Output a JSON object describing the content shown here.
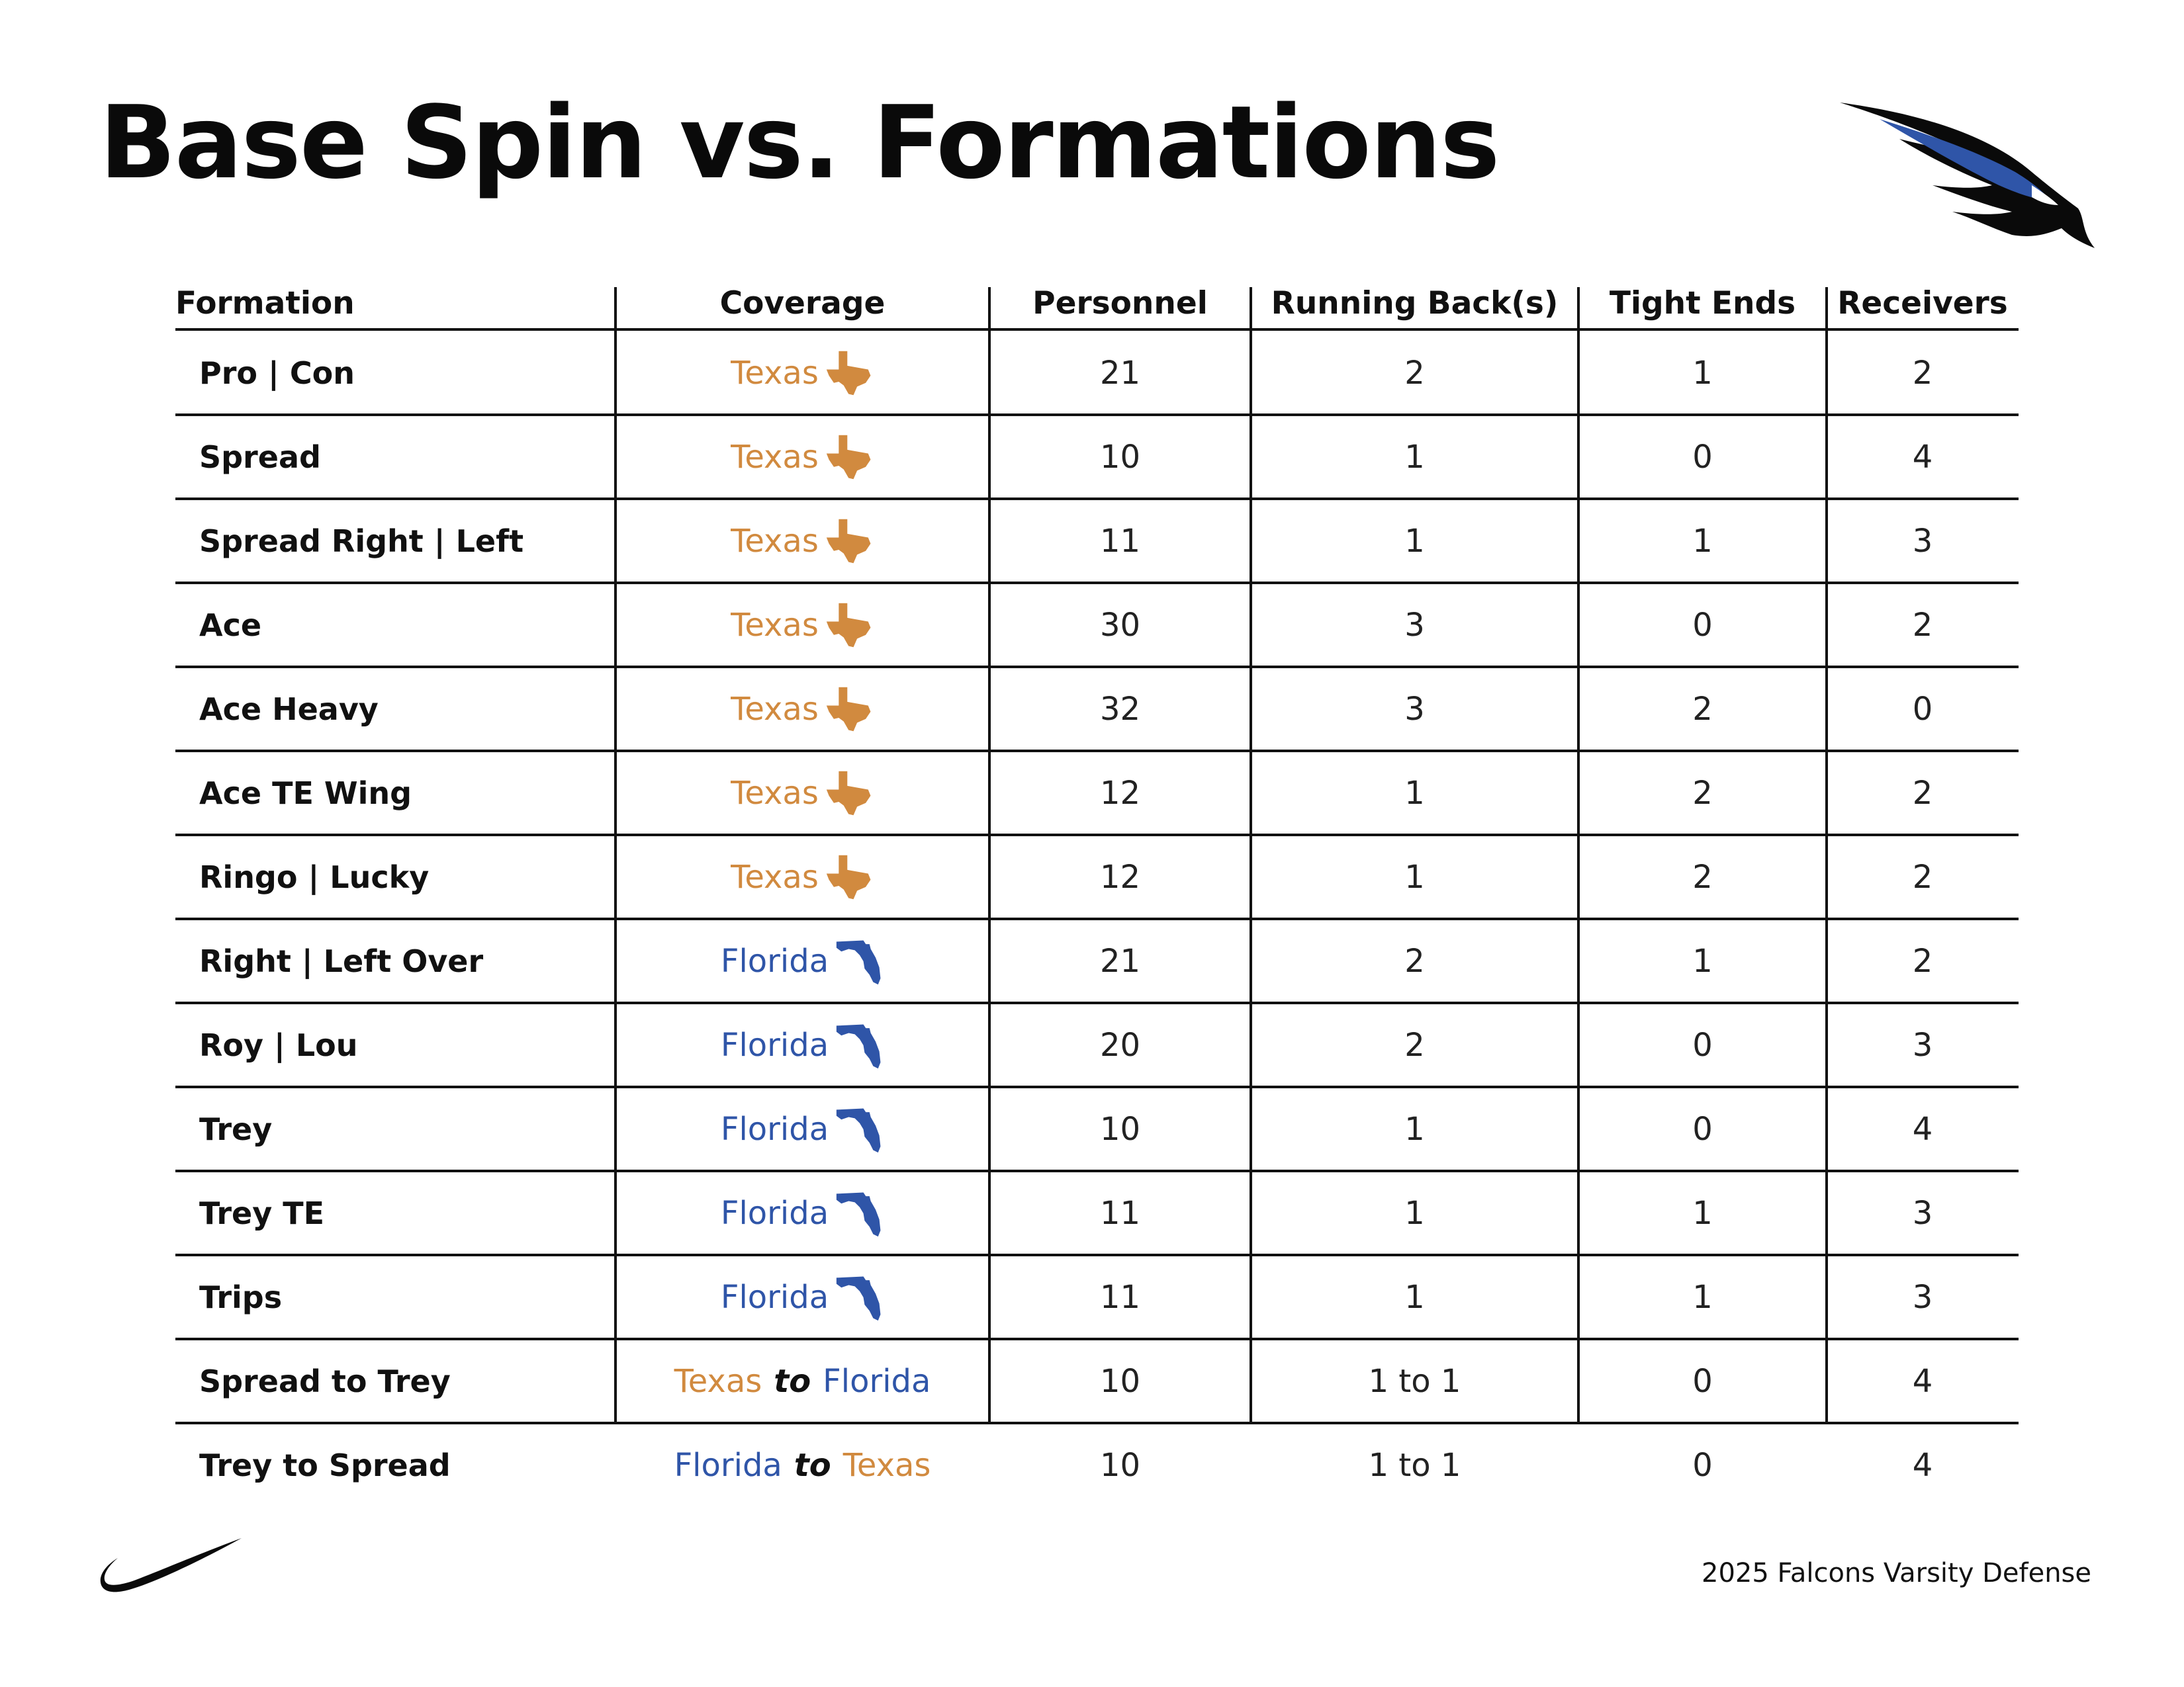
{
  "title": "Base Spin vs. Formations",
  "footer": "2025 Falcons Varsity Defense",
  "colors": {
    "texas": "#d18a3f",
    "florida": "#2f55a8",
    "ink": "#111111",
    "logo_blue": "#2f55a8"
  },
  "icons": {
    "texas": "texas-state-icon",
    "florida": "florida-state-icon",
    "logo": "falcon-logo-icon",
    "brand": "swoosh-icon"
  },
  "headers": {
    "formation": "Formation",
    "coverage": "Coverage",
    "personnel": "Personnel",
    "running_backs": "Running Back(s)",
    "tight_ends": "Tight Ends",
    "receivers": "Receivers"
  },
  "coverage_words": {
    "texas": "Texas",
    "florida": "Florida",
    "to": "to"
  },
  "rows": [
    {
      "formation": "Pro | Con",
      "coverage": "texas",
      "personnel": "21",
      "rb": "2",
      "te": "1",
      "wr": "2"
    },
    {
      "formation": "Spread",
      "coverage": "texas",
      "personnel": "10",
      "rb": "1",
      "te": "0",
      "wr": "4"
    },
    {
      "formation": "Spread Right | Left",
      "coverage": "texas",
      "personnel": "11",
      "rb": "1",
      "te": "1",
      "wr": "3"
    },
    {
      "formation": "Ace",
      "coverage": "texas",
      "personnel": "30",
      "rb": "3",
      "te": "0",
      "wr": "2"
    },
    {
      "formation": "Ace Heavy",
      "coverage": "texas",
      "personnel": "32",
      "rb": "3",
      "te": "2",
      "wr": "0"
    },
    {
      "formation": "Ace TE Wing",
      "coverage": "texas",
      "personnel": "12",
      "rb": "1",
      "te": "2",
      "wr": "2"
    },
    {
      "formation": "Ringo | Lucky",
      "coverage": "texas",
      "personnel": "12",
      "rb": "1",
      "te": "2",
      "wr": "2"
    },
    {
      "formation": "Right | Left Over",
      "coverage": "florida",
      "personnel": "21",
      "rb": "2",
      "te": "1",
      "wr": "2"
    },
    {
      "formation": "Roy | Lou",
      "coverage": "florida",
      "personnel": "20",
      "rb": "2",
      "te": "0",
      "wr": "3"
    },
    {
      "formation": "Trey",
      "coverage": "florida",
      "personnel": "10",
      "rb": "1",
      "te": "0",
      "wr": "4"
    },
    {
      "formation": "Trey TE",
      "coverage": "florida",
      "personnel": "11",
      "rb": "1",
      "te": "1",
      "wr": "3"
    },
    {
      "formation": "Trips",
      "coverage": "florida",
      "personnel": "11",
      "rb": "1",
      "te": "1",
      "wr": "3"
    },
    {
      "formation": "Spread to Trey",
      "coverage": "texas-to-florida",
      "personnel": "10",
      "rb": "1 to 1",
      "te": "0",
      "wr": "4"
    },
    {
      "formation": "Trey to Spread",
      "coverage": "florida-to-texas",
      "personnel": "10",
      "rb": "1 to 1",
      "te": "0",
      "wr": "4"
    }
  ]
}
